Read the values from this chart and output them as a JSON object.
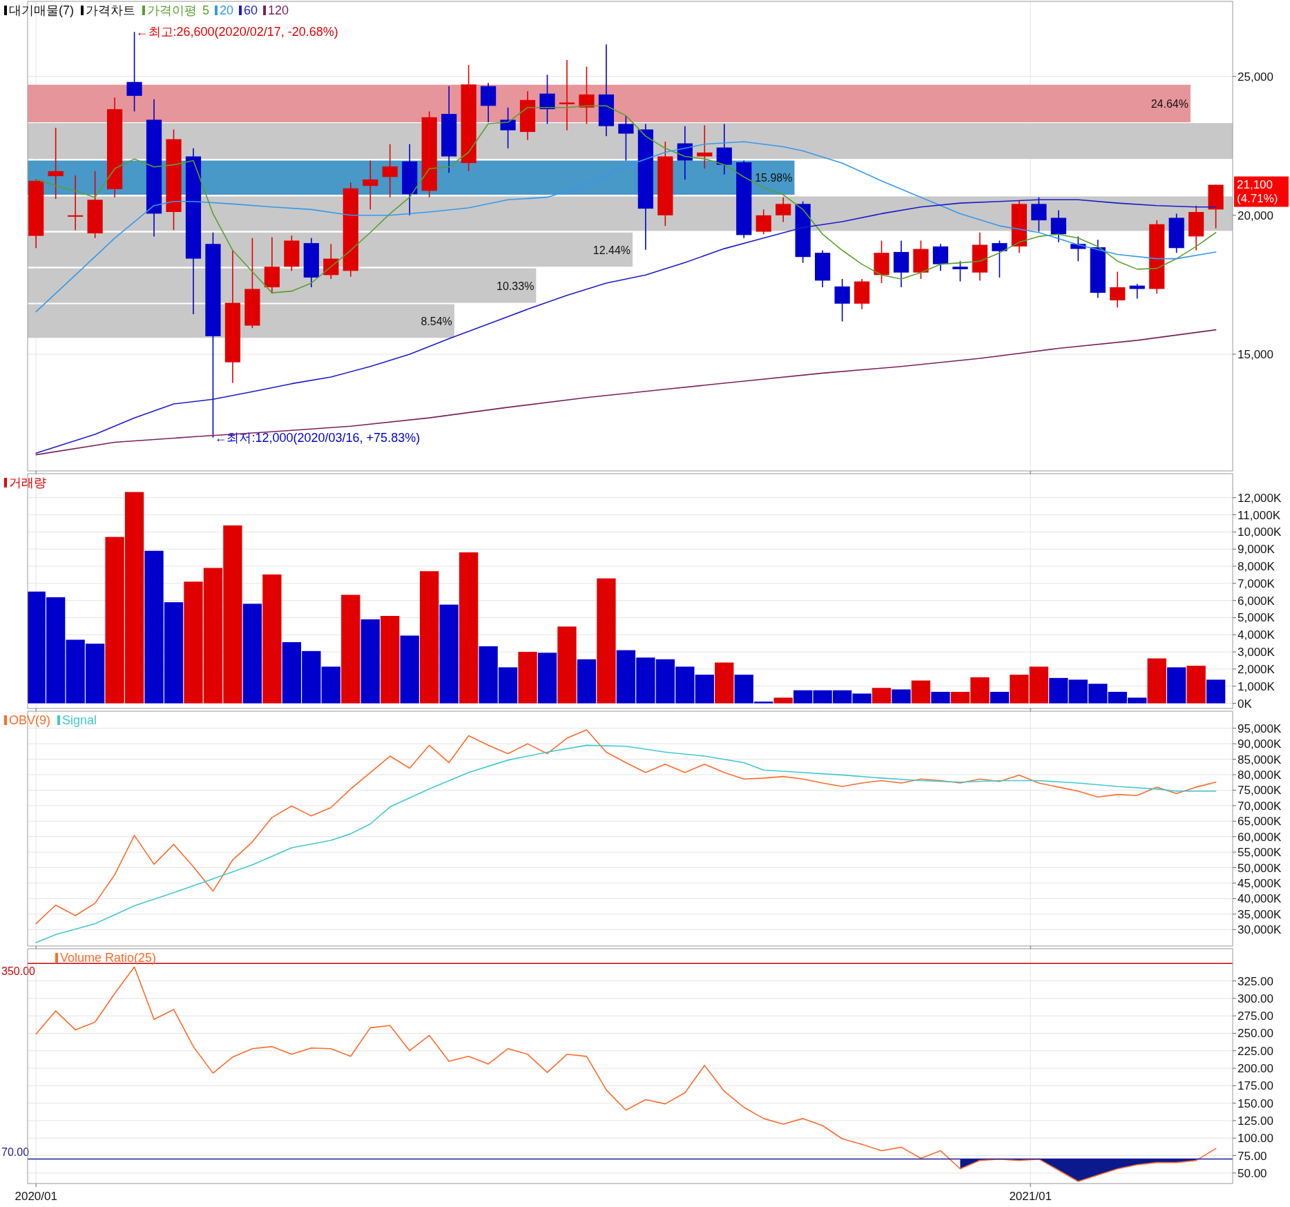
{
  "chart_data": [
    {
      "type": "candlestick",
      "subtitle": "대기매물(7)",
      "title": "가격차트",
      "legend_title": "가격이평",
      "legend": "top left",
      "grid": true,
      "tick_labels": "y",
      "x": [
        "2020-01-13",
        "2020-01-20",
        "2020-01-27",
        "2020-02-03",
        "2020-02-10",
        "2020-02-17",
        "2020-02-24",
        "2020-03-02",
        "2020-03-09",
        "2020-03-16",
        "2020-03-23",
        "2020-03-30",
        "2020-04-06",
        "2020-04-13",
        "2020-04-20",
        "2020-04-27",
        "2020-05-04",
        "2020-05-11",
        "2020-05-18",
        "2020-05-25",
        "2020-06-01",
        "2020-06-08",
        "2020-06-15",
        "2020-06-22",
        "2020-06-29",
        "2020-07-06",
        "2020-07-13",
        "2020-07-20",
        "2020-07-27",
        "2020-08-03",
        "2020-08-10",
        "2020-08-17",
        "2020-08-24",
        "2020-08-31",
        "2020-09-07",
        "2020-09-14",
        "2020-09-21",
        "2020-09-28",
        "2020-10-05",
        "2020-10-12",
        "2020-10-19",
        "2020-10-26",
        "2020-11-02",
        "2020-11-09",
        "2020-11-16",
        "2020-11-23",
        "2020-11-30",
        "2020-12-07",
        "2020-12-14",
        "2020-12-21",
        "2020-12-28",
        "2021-01-04",
        "2021-01-11",
        "2021-01-18",
        "2021-01-25",
        "2021-02-01",
        "2021-02-08",
        "2021-02-15",
        "2021-02-22",
        "2021-03-01",
        "2021-03-08"
      ],
      "ohlc": [
        [
          19260,
          21300,
          18820,
          21240
        ],
        [
          21410,
          23150,
          20590,
          21590
        ],
        [
          20000,
          21440,
          19470,
          20000
        ],
        [
          19350,
          21590,
          19180,
          20560
        ],
        [
          20940,
          24240,
          20650,
          23820
        ],
        [
          24800,
          26600,
          23740,
          24300
        ],
        [
          23440,
          24180,
          19240,
          20060
        ],
        [
          20120,
          23090,
          19470,
          22740
        ],
        [
          22120,
          22410,
          16440,
          18440
        ],
        [
          18970,
          19380,
          12000,
          15650
        ],
        [
          14710,
          18740,
          13970,
          16850
        ],
        [
          16030,
          19180,
          15940,
          17350
        ],
        [
          17410,
          19210,
          17180,
          18150
        ],
        [
          18150,
          19270,
          18000,
          19090
        ],
        [
          19000,
          19180,
          17410,
          17760
        ],
        [
          17850,
          18970,
          17710,
          18440
        ],
        [
          18000,
          21180,
          17790,
          20970
        ],
        [
          21060,
          21970,
          20210,
          21290
        ],
        [
          21380,
          22560,
          20650,
          21760
        ],
        [
          21940,
          22560,
          20000,
          20760
        ],
        [
          20880,
          23740,
          20650,
          23530
        ],
        [
          23650,
          24650,
          21530,
          22120
        ],
        [
          21880,
          25410,
          21590,
          24710
        ],
        [
          24650,
          24760,
          23350,
          23940
        ],
        [
          23440,
          23880,
          22410,
          23060
        ],
        [
          23000,
          24470,
          22710,
          24150
        ],
        [
          24380,
          25060,
          23290,
          23820
        ],
        [
          24000,
          25590,
          23060,
          24060
        ],
        [
          23880,
          25350,
          23290,
          24350
        ],
        [
          24350,
          26150,
          22850,
          23210
        ],
        [
          23290,
          23590,
          21970,
          22940
        ],
        [
          23090,
          23290,
          18760,
          20240
        ],
        [
          20000,
          22650,
          19620,
          22120
        ],
        [
          22590,
          23210,
          21290,
          21970
        ],
        [
          22120,
          23240,
          21680,
          22260
        ],
        [
          22440,
          23290,
          21470,
          21820
        ],
        [
          21910,
          21970,
          19180,
          19290
        ],
        [
          19410,
          20210,
          19320,
          20000
        ],
        [
          20000,
          20650,
          19760,
          20410
        ],
        [
          20410,
          20500,
          18290,
          18500
        ],
        [
          18650,
          18740,
          17410,
          17650
        ],
        [
          17440,
          17710,
          16180,
          16820
        ],
        [
          16820,
          17710,
          16620,
          17620
        ],
        [
          17850,
          19090,
          17560,
          18650
        ],
        [
          18680,
          19090,
          17410,
          17940
        ],
        [
          17940,
          19090,
          17710,
          18790
        ],
        [
          18880,
          18970,
          18000,
          18240
        ],
        [
          18150,
          18350,
          17620,
          18060
        ],
        [
          17940,
          19380,
          17650,
          18940
        ],
        [
          19000,
          19090,
          17760,
          18710
        ],
        [
          18880,
          20530,
          18650,
          20410
        ],
        [
          20410,
          20650,
          19410,
          19820
        ],
        [
          19910,
          20180,
          19030,
          19320
        ],
        [
          18970,
          19240,
          18350,
          18790
        ],
        [
          18850,
          19120,
          17030,
          17210
        ],
        [
          16940,
          17970,
          16680,
          17410
        ],
        [
          17470,
          17530,
          17000,
          17350
        ],
        [
          17350,
          19820,
          17180,
          19680
        ],
        [
          19910,
          20060,
          18650,
          18820
        ],
        [
          19240,
          20350,
          18740,
          20120
        ],
        [
          20210,
          21100,
          19530,
          21100
        ]
      ],
      "series": [
        {
          "name": "5",
          "type": "line",
          "color": "#5aa02c",
          "values": [
            21300,
            21060,
            20880,
            20650,
            21680,
            22030,
            21740,
            21820,
            21970,
            20060,
            18740,
            17970,
            17210,
            17270,
            17560,
            18150,
            18740,
            19380,
            20060,
            20650,
            21680,
            21740,
            22270,
            23300,
            23350,
            23880,
            23880,
            23880,
            23940,
            23940,
            23590,
            22850,
            22410,
            22120,
            22030,
            21820,
            21380,
            21000,
            20740,
            20210,
            19320,
            18740,
            18240,
            17850,
            17710,
            17940,
            18240,
            18290,
            18350,
            18650,
            19030,
            19240,
            19320,
            19180,
            18880,
            18350,
            18060,
            18090,
            18440,
            18880,
            19380
          ]
        },
        {
          "name": "20",
          "type": "line",
          "color": "#3399ee",
          "x": [
            "2020-01-13",
            "2020-01-27",
            "2020-02-10",
            "2020-02-24",
            "2020-03-02",
            "2020-03-09",
            "2020-03-23",
            "2020-04-06",
            "2020-04-20",
            "2020-05-04",
            "2020-05-18",
            "2020-06-01",
            "2020-06-15",
            "2020-06-29",
            "2020-07-13",
            "2020-07-27",
            "2020-08-10",
            "2020-08-24",
            "2020-09-07",
            "2020-09-21",
            "2020-10-05",
            "2020-10-12",
            "2020-10-26",
            "2020-11-09",
            "2020-11-23",
            "2020-12-07",
            "2020-12-21",
            "2021-01-04",
            "2021-01-18",
            "2021-02-01",
            "2021-02-15",
            "2021-02-22",
            "2021-03-08"
          ],
          "values": [
            16530,
            17850,
            19180,
            20350,
            20500,
            20500,
            20410,
            20300,
            20210,
            20000,
            20000,
            20120,
            20270,
            20560,
            20650,
            21090,
            21770,
            22270,
            22560,
            22650,
            22470,
            22320,
            21880,
            21240,
            20650,
            20060,
            19620,
            19380,
            18940,
            18590,
            18440,
            18440,
            18680
          ]
        },
        {
          "name": "60",
          "type": "line",
          "color": "#1a1acc",
          "x": [
            "2020-01-13",
            "2020-02-03",
            "2020-02-17",
            "2020-03-02",
            "2020-03-16",
            "2020-03-30",
            "2020-04-13",
            "2020-04-27",
            "2020-05-11",
            "2020-05-25",
            "2020-06-08",
            "2020-06-22",
            "2020-07-06",
            "2020-07-20",
            "2020-08-03",
            "2020-08-17",
            "2020-08-31",
            "2020-09-14",
            "2020-09-28",
            "2020-10-12",
            "2020-10-26",
            "2020-11-09",
            "2020-11-23",
            "2020-12-07",
            "2020-12-21",
            "2021-01-04",
            "2021-01-18",
            "2021-02-01",
            "2021-02-15",
            "2021-03-01",
            "2021-03-08"
          ],
          "values": [
            11440,
            12120,
            12710,
            13210,
            13380,
            13650,
            13940,
            14180,
            14560,
            15000,
            15560,
            16090,
            16620,
            17120,
            17560,
            17850,
            18300,
            18800,
            19180,
            19560,
            19770,
            20060,
            20300,
            20440,
            20500,
            20560,
            20560,
            20440,
            20350,
            20300,
            20300
          ]
        },
        {
          "name": "120",
          "type": "line",
          "color": "#7a1f5a",
          "x": [
            "2020-01-13",
            "2020-02-10",
            "2020-03-09",
            "2020-04-06",
            "2020-05-04",
            "2020-06-01",
            "2020-06-29",
            "2020-07-27",
            "2020-08-24",
            "2020-09-21",
            "2020-10-19",
            "2020-11-16",
            "2020-12-14",
            "2021-01-11",
            "2021-02-08",
            "2021-03-08"
          ],
          "values": [
            11380,
            11830,
            12030,
            12210,
            12410,
            12710,
            13090,
            13440,
            13740,
            14030,
            14320,
            14560,
            14850,
            15210,
            15500,
            15880
          ]
        }
      ],
      "bands": [
        {
          "axis": "y",
          "from": 23350,
          "to": 24700,
          "label": "24.64%",
          "color": "#e6959b"
        },
        {
          "axis": "y",
          "from": 22030,
          "to": 23320,
          "label": null,
          "color": "#c8c8c8"
        },
        {
          "axis": "y",
          "from": 20740,
          "to": 21970,
          "label": "15.98%",
          "color": "#4898c8"
        },
        {
          "axis": "y",
          "from": 19440,
          "to": 20680,
          "label": null,
          "color": "#c8c8c8"
        },
        {
          "axis": "y",
          "from": 18150,
          "to": 19380,
          "label": "12.44%",
          "color": "#c8c8c8"
        },
        {
          "axis": "y",
          "from": 16850,
          "to": 18090,
          "label": "10.33%",
          "color": "#c8c8c8"
        },
        {
          "axis": "y",
          "from": 15590,
          "to": 16800,
          "label": "8.54%",
          "color": "#c8c8c8"
        }
      ],
      "annotations": [
        {
          "text": "←최고:26,600(2020/02/17, -20.68%)",
          "x": "2020-02-17",
          "y": 26600
        },
        {
          "text": "←최저:12,000(2020/03/16, +75.83%)",
          "x": "2020-03-16",
          "y": 12000
        },
        {
          "text": "21,100 (4.71%)",
          "x": "2021-03-08",
          "y": 21100
        }
      ],
      "xlim": [
        "2020-01-10",
        "2021-03-14"
      ],
      "xticks": [
        {
          "value": "2020-01-13",
          "label": null
        },
        {
          "value": "2021-01-01",
          "label": null
        }
      ],
      "ylim": [
        10800,
        27700
      ],
      "yticks": [
        {
          "value": 15000,
          "label": "15,000"
        },
        {
          "value": 20000,
          "label": "20,000"
        },
        {
          "value": 25000,
          "label": "25,000"
        }
      ]
    },
    {
      "type": "bar",
      "title": "거래량",
      "grid": true,
      "tick_labels": "y",
      "x": [
        "2020-01-13",
        "2020-01-20",
        "2020-01-27",
        "2020-02-03",
        "2020-02-10",
        "2020-02-17",
        "2020-02-24",
        "2020-03-02",
        "2020-03-09",
        "2020-03-16",
        "2020-03-23",
        "2020-03-30",
        "2020-04-06",
        "2020-04-13",
        "2020-04-20",
        "2020-04-27",
        "2020-05-04",
        "2020-05-11",
        "2020-05-18",
        "2020-05-25",
        "2020-06-01",
        "2020-06-08",
        "2020-06-15",
        "2020-06-22",
        "2020-06-29",
        "2020-07-06",
        "2020-07-13",
        "2020-07-20",
        "2020-07-27",
        "2020-08-03",
        "2020-08-10",
        "2020-08-17",
        "2020-08-24",
        "2020-08-31",
        "2020-09-07",
        "2020-09-14",
        "2020-09-21",
        "2020-09-28",
        "2020-10-05",
        "2020-10-12",
        "2020-10-19",
        "2020-10-26",
        "2020-11-02",
        "2020-11-09",
        "2020-11-16",
        "2020-11-23",
        "2020-11-30",
        "2020-12-07",
        "2020-12-14",
        "2020-12-21",
        "2020-12-28",
        "2021-01-04",
        "2021-01-11",
        "2021-01-18",
        "2021-01-25",
        "2021-02-01",
        "2021-02-08",
        "2021-02-15",
        "2021-02-22",
        "2021-03-01",
        "2021-03-08"
      ],
      "values": [
        6520,
        6190,
        3710,
        3480,
        9710,
        12330,
        8900,
        5900,
        7100,
        7900,
        10380,
        5810,
        7520,
        3570,
        3050,
        2140,
        6330,
        4900,
        5100,
        3950,
        7710,
        5760,
        8810,
        3330,
        2100,
        3000,
        2950,
        4480,
        2570,
        7290,
        3100,
        2670,
        2570,
        2140,
        1670,
        2380,
        1670,
        100,
        330,
        760,
        760,
        760,
        570,
        900,
        810,
        1330,
        670,
        670,
        1520,
        670,
        1670,
        2140,
        1480,
        1380,
        1140,
        670,
        330,
        2620,
        2100,
        2190,
        1380
      ],
      "colors": [
        "#0000cc",
        "#0000cc",
        "#0000cc",
        "#0000cc",
        "#e00000",
        "#e00000",
        "#0000cc",
        "#0000cc",
        "#e00000",
        "#e00000",
        "#e00000",
        "#0000cc",
        "#e00000",
        "#0000cc",
        "#0000cc",
        "#0000cc",
        "#e00000",
        "#0000cc",
        "#e00000",
        "#0000cc",
        "#e00000",
        "#0000cc",
        "#e00000",
        "#0000cc",
        "#0000cc",
        "#e00000",
        "#0000cc",
        "#e00000",
        "#0000cc",
        "#e00000",
        "#0000cc",
        "#0000cc",
        "#0000cc",
        "#0000cc",
        "#0000cc",
        "#e00000",
        "#0000cc",
        "#0000cc",
        "#e00000",
        "#0000cc",
        "#0000cc",
        "#0000cc",
        "#0000cc",
        "#e00000",
        "#0000cc",
        "#e00000",
        "#0000cc",
        "#e00000",
        "#e00000",
        "#0000cc",
        "#e00000",
        "#e00000",
        "#0000cc",
        "#0000cc",
        "#0000cc",
        "#0000cc",
        "#0000cc",
        "#e00000",
        "#0000cc",
        "#e00000",
        "#0000cc"
      ],
      "xlim": [
        "2020-01-10",
        "2021-03-14"
      ],
      "xticks": [
        {
          "value": "2020-01-13",
          "label": null
        },
        {
          "value": "2021-01-01",
          "label": null
        }
      ],
      "ylim": [
        -300,
        13400
      ],
      "yticks": [
        {
          "value": 0,
          "label": "0K"
        },
        {
          "value": 1000,
          "label": "1,000K"
        },
        {
          "value": 2000,
          "label": "2,000K"
        },
        {
          "value": 3000,
          "label": "3,000K"
        },
        {
          "value": 4000,
          "label": "4,000K"
        },
        {
          "value": 5000,
          "label": "5,000K"
        },
        {
          "value": 6000,
          "label": "6,000K"
        },
        {
          "value": 7000,
          "label": "7,000K"
        },
        {
          "value": 8000,
          "label": "8,000K"
        },
        {
          "value": 9000,
          "label": "9,000K"
        },
        {
          "value": 10000,
          "label": "10,000K"
        },
        {
          "value": 11000,
          "label": "11,000K"
        },
        {
          "value": 12000,
          "label": "12,000K"
        }
      ]
    },
    {
      "type": "line",
      "legend": "top left",
      "grid": true,
      "tick_labels": "y",
      "x": [
        "2020-01-13",
        "2020-01-20",
        "2020-01-27",
        "2020-02-03",
        "2020-02-10",
        "2020-02-17",
        "2020-02-24",
        "2020-03-02",
        "2020-03-09",
        "2020-03-16",
        "2020-03-23",
        "2020-03-30",
        "2020-04-06",
        "2020-04-13",
        "2020-04-20",
        "2020-04-27",
        "2020-05-04",
        "2020-05-11",
        "2020-05-18",
        "2020-05-25",
        "2020-06-01",
        "2020-06-08",
        "2020-06-15",
        "2020-06-22",
        "2020-06-29",
        "2020-07-06",
        "2020-07-13",
        "2020-07-20",
        "2020-07-27",
        "2020-08-03",
        "2020-08-10",
        "2020-08-17",
        "2020-08-24",
        "2020-08-31",
        "2020-09-07",
        "2020-09-14",
        "2020-09-21",
        "2020-09-28",
        "2020-10-05",
        "2020-10-12",
        "2020-10-19",
        "2020-10-26",
        "2020-11-02",
        "2020-11-09",
        "2020-11-16",
        "2020-11-23",
        "2020-11-30",
        "2020-12-07",
        "2020-12-14",
        "2020-12-21",
        "2020-12-28",
        "2021-01-04",
        "2021-01-11",
        "2021-01-18",
        "2021-01-25",
        "2021-02-01",
        "2021-02-08",
        "2021-02-15",
        "2021-02-22",
        "2021-03-01",
        "2021-03-08"
      ],
      "series": [
        {
          "name": "OBV(9)",
          "color": "#ff6a2a",
          "values": [
            31900,
            37900,
            34500,
            38500,
            47700,
            60400,
            51100,
            57500,
            50300,
            42400,
            52500,
            58300,
            66200,
            69900,
            66700,
            69400,
            75400,
            80700,
            86000,
            82100,
            89500,
            83900,
            92600,
            89500,
            86800,
            90000,
            86800,
            91800,
            94500,
            87300,
            83900,
            80700,
            83400,
            80700,
            83400,
            80700,
            78600,
            78900,
            79400,
            78600,
            77300,
            76200,
            77300,
            78100,
            77300,
            78600,
            78100,
            77300,
            78600,
            77800,
            79900,
            77300,
            76000,
            74700,
            72800,
            73600,
            73300,
            76000,
            73900,
            76000,
            77600
          ]
        },
        {
          "name": "Signal",
          "color": "#40c8d0",
          "x": [
            "2020-01-13",
            "2020-01-20",
            "2020-02-03",
            "2020-02-17",
            "2020-03-02",
            "2020-03-16",
            "2020-03-30",
            "2020-04-13",
            "2020-04-27",
            "2020-05-04",
            "2020-05-11",
            "2020-05-18",
            "2020-06-01",
            "2020-06-15",
            "2020-06-29",
            "2020-07-13",
            "2020-07-27",
            "2020-08-10",
            "2020-08-24",
            "2020-09-07",
            "2020-09-21",
            "2020-09-28",
            "2020-10-12",
            "2020-10-26",
            "2020-11-09",
            "2020-11-23",
            "2020-12-07",
            "2020-12-21",
            "2021-01-04",
            "2021-01-18",
            "2021-02-01",
            "2021-02-15",
            "2021-02-22",
            "2021-03-08"
          ],
          "values": [
            25800,
            28400,
            31900,
            37700,
            41900,
            46400,
            50900,
            56400,
            58800,
            60900,
            64100,
            69600,
            75400,
            80700,
            84700,
            87300,
            89500,
            89200,
            87300,
            86000,
            83900,
            81500,
            80700,
            79900,
            78900,
            78100,
            77600,
            78100,
            78100,
            77300,
            76200,
            75400,
            74700,
            74700
          ]
        }
      ],
      "xlim": [
        "2020-01-10",
        "2021-03-14"
      ],
      "xticks": [
        {
          "value": "2020-01-13",
          "label": null
        },
        {
          "value": "2021-01-01",
          "label": null
        }
      ],
      "ylim": [
        24700,
        100500
      ],
      "yticks": [
        {
          "value": 30000,
          "label": "30,000K"
        },
        {
          "value": 35000,
          "label": "35,000K"
        },
        {
          "value": 40000,
          "label": "40,000K"
        },
        {
          "value": 45000,
          "label": "45,000K"
        },
        {
          "value": 50000,
          "label": "50,000K"
        },
        {
          "value": 55000,
          "label": "55,000K"
        },
        {
          "value": 60000,
          "label": "60,000K"
        },
        {
          "value": 65000,
          "label": "65,000K"
        },
        {
          "value": 70000,
          "label": "70,000K"
        },
        {
          "value": 75000,
          "label": "75,000K"
        },
        {
          "value": 80000,
          "label": "80,000K"
        },
        {
          "value": 85000,
          "label": "85,000K"
        },
        {
          "value": 90000,
          "label": "90,000K"
        },
        {
          "value": 95000,
          "label": "95,000K"
        }
      ]
    },
    {
      "type": "line",
      "legend": "top left",
      "grid": true,
      "x": [
        "2020-01-13",
        "2020-01-20",
        "2020-01-27",
        "2020-02-03",
        "2020-02-10",
        "2020-02-17",
        "2020-02-24",
        "2020-03-02",
        "2020-03-09",
        "2020-03-16",
        "2020-03-23",
        "2020-03-30",
        "2020-04-06",
        "2020-04-13",
        "2020-04-20",
        "2020-04-27",
        "2020-05-04",
        "2020-05-11",
        "2020-05-18",
        "2020-05-25",
        "2020-06-01",
        "2020-06-08",
        "2020-06-15",
        "2020-06-22",
        "2020-06-29",
        "2020-07-06",
        "2020-07-13",
        "2020-07-20",
        "2020-07-27",
        "2020-08-03",
        "2020-08-10",
        "2020-08-17",
        "2020-08-24",
        "2020-08-31",
        "2020-09-07",
        "2020-09-14",
        "2020-09-21",
        "2020-09-28",
        "2020-10-05",
        "2020-10-12",
        "2020-10-19",
        "2020-10-26",
        "2020-11-02",
        "2020-11-09",
        "2020-11-16",
        "2020-11-23",
        "2020-11-30",
        "2020-12-07",
        "2020-12-14",
        "2020-12-21",
        "2020-12-28",
        "2021-01-04",
        "2021-01-11",
        "2021-01-18",
        "2021-01-25",
        "2021-02-01",
        "2021-02-08",
        "2021-02-15",
        "2021-02-22",
        "2021-03-01",
        "2021-03-08"
      ],
      "series": [
        {
          "name": "Volume Ratio(25)",
          "color": "#ff6a2a",
          "values": [
            249,
            282,
            255,
            266,
            307,
            345,
            270,
            284,
            231,
            193,
            216,
            228,
            231,
            220,
            229,
            228,
            217,
            258,
            261,
            225,
            247,
            210,
            217,
            206,
            228,
            220,
            194,
            220,
            217,
            169,
            140,
            155,
            149,
            165,
            204,
            167,
            144,
            128,
            120,
            128,
            118,
            99,
            91,
            82,
            87,
            71,
            82,
            56,
            68,
            70,
            68,
            70,
            54,
            38,
            47,
            56,
            62,
            65,
            65,
            68,
            85
          ],
          "lower": [
            null,
            null,
            null,
            null,
            null,
            null,
            null,
            null,
            null,
            null,
            null,
            null,
            null,
            null,
            null,
            null,
            null,
            null,
            null,
            null,
            null,
            null,
            null,
            null,
            null,
            null,
            null,
            null,
            null,
            null,
            null,
            null,
            null,
            null,
            null,
            null,
            null,
            null,
            null,
            null,
            null,
            null,
            null,
            null,
            null,
            null,
            null,
            56,
            68,
            70,
            68,
            70,
            54,
            38,
            47,
            56,
            62,
            65,
            65,
            68,
            null
          ],
          "upper": [
            null,
            null,
            null,
            null,
            null,
            null,
            null,
            null,
            null,
            null,
            null,
            null,
            null,
            null,
            null,
            null,
            null,
            null,
            null,
            null,
            null,
            null,
            null,
            null,
            null,
            null,
            null,
            null,
            null,
            null,
            null,
            null,
            null,
            null,
            null,
            null,
            null,
            null,
            null,
            null,
            null,
            null,
            null,
            null,
            null,
            null,
            null,
            70,
            70,
            70,
            70,
            70,
            70,
            70,
            70,
            70,
            70,
            70,
            70,
            70,
            null
          ]
        }
      ],
      "ref_lines": [
        {
          "axis": "y",
          "value": 350,
          "label": "350.00",
          "color": "#cc0000"
        },
        {
          "axis": "y",
          "value": 70,
          "label": "70.00",
          "color": "#1a1a99"
        }
      ],
      "xlim": [
        "2020-01-10",
        "2021-03-14"
      ],
      "xticks": [
        {
          "value": "2020-01-13",
          "label": "2020/01"
        },
        {
          "value": "2021-01-01",
          "label": "2021/01"
        }
      ],
      "ylim": [
        35,
        371
      ],
      "yticks": [
        {
          "value": 50,
          "label": "50.00"
        },
        {
          "value": 75,
          "label": "75.00"
        },
        {
          "value": 100,
          "label": "100.00"
        },
        {
          "value": 125,
          "label": "125.00"
        },
        {
          "value": 150,
          "label": "150.00"
        },
        {
          "value": 175,
          "label": "175.00"
        },
        {
          "value": 200,
          "label": "200.00"
        },
        {
          "value": 225,
          "label": "225.00"
        },
        {
          "value": 250,
          "label": "250.00"
        },
        {
          "value": 275,
          "label": "275.00"
        },
        {
          "value": 300,
          "label": "300.00"
        },
        {
          "value": 325,
          "label": "325.00"
        }
      ]
    }
  ]
}
